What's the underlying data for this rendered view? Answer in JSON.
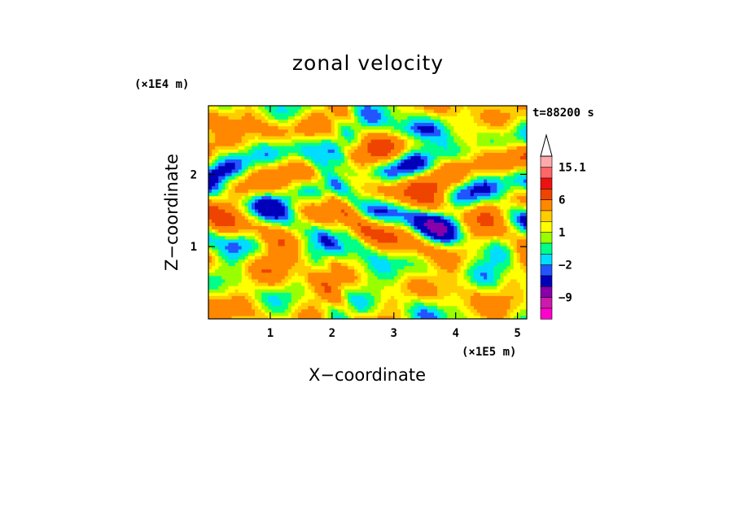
{
  "chart_data": {
    "type": "heatmap",
    "title": "zonal velocity",
    "xlabel": "X−coordinate",
    "ylabel": "Z−coordinate",
    "x_unit": "(×1E5 m)",
    "y_unit": "(×1E4 m)",
    "time_label": "t=88200 s",
    "xlim": [
      0,
      5.15
    ],
    "ylim": [
      0,
      2.95
    ],
    "x_ticks": [
      1,
      2,
      3,
      4,
      5
    ],
    "y_ticks": [
      1,
      2
    ],
    "x_tick_labels": [
      "1",
      "2",
      "3",
      "4",
      "5"
    ],
    "y_tick_labels": [
      "1",
      "2"
    ],
    "colorbar": {
      "levels": [
        -15,
        -12,
        -9,
        -6,
        -3,
        -2,
        -1,
        0,
        1,
        2,
        3,
        6,
        9,
        12,
        15.1
      ],
      "colors": [
        "#ff00cc",
        "#cc1aaa",
        "#8800aa",
        "#0000bb",
        "#2255ff",
        "#00ddff",
        "#00ff88",
        "#99ff00",
        "#ffff00",
        "#ffcc00",
        "#ff8800",
        "#ee4400",
        "#ee1111",
        "#ff6666",
        "#ffaaaa"
      ],
      "labels": [
        {
          "value": 15.1,
          "text": "15.1"
        },
        {
          "value": 6,
          "text": "6"
        },
        {
          "value": 1,
          "text": "1"
        },
        {
          "value": -2,
          "text": "−2"
        },
        {
          "value": -9,
          "text": "−9"
        }
      ],
      "extend": "max"
    }
  }
}
